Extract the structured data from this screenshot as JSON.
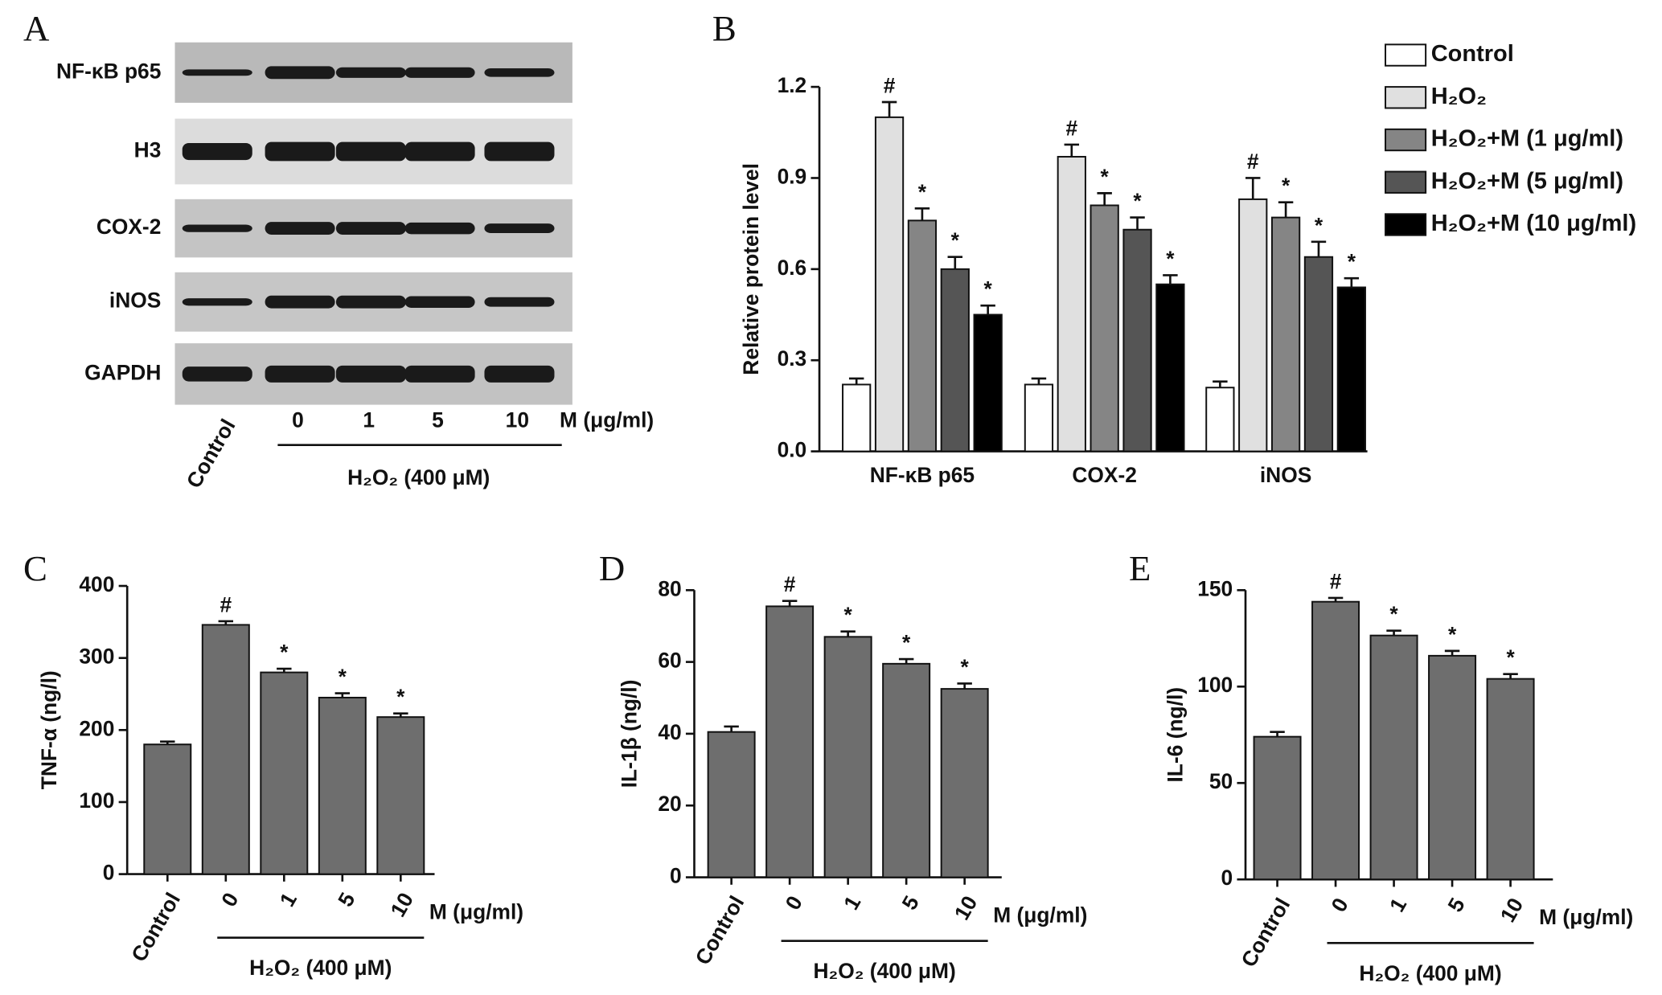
{
  "blot": {
    "panel_label": "A",
    "rows": [
      "NF-κB p65",
      "H3",
      "COX-2",
      "iNOS",
      "GAPDH"
    ],
    "lanes": [
      "Control",
      "0",
      "1",
      "5",
      "10"
    ],
    "unit": "M (μg/ml)",
    "group_label": "H₂O₂ (400 μM)"
  },
  "chart_data": [
    {
      "type": "grouped_bar",
      "panel_label": "B",
      "y_label": "Relative protein level",
      "categories": [
        "NF-κB p65",
        "COX-2",
        "iNOS"
      ],
      "series": [
        {
          "name": "Control",
          "color": "#ffffff",
          "values": [
            0.22,
            0.22,
            0.21
          ],
          "errors": [
            0.02,
            0.02,
            0.02
          ]
        },
        {
          "name": "H₂O₂",
          "color": "#e0e0e0",
          "values": [
            1.1,
            0.97,
            0.83
          ],
          "errors": [
            0.05,
            0.04,
            0.07
          ],
          "labels": [
            "#",
            "#",
            "#"
          ]
        },
        {
          "name": "H₂O₂+M (1 μg/ml)",
          "color": "#858585",
          "values": [
            0.76,
            0.81,
            0.77
          ],
          "errors": [
            0.04,
            0.04,
            0.05
          ],
          "labels": [
            "*",
            "*",
            "*"
          ]
        },
        {
          "name": "H₂O₂+M (5 μg/ml)",
          "color": "#555555",
          "values": [
            0.6,
            0.73,
            0.64
          ],
          "errors": [
            0.04,
            0.04,
            0.05
          ],
          "labels": [
            "*",
            "*",
            "*"
          ]
        },
        {
          "name": "H₂O₂+M (10 μg/ml)",
          "color": "#000000",
          "values": [
            0.45,
            0.55,
            0.54
          ],
          "errors": [
            0.03,
            0.03,
            0.03
          ],
          "labels": [
            "*",
            "*",
            "*"
          ]
        }
      ],
      "ylim": [
        0,
        1.2
      ],
      "yticks": [
        {
          "value": 0,
          "label": "0.0"
        },
        0.3,
        0.6,
        0.9,
        1.2
      ]
    },
    {
      "type": "bar",
      "panel_label": "C",
      "y_label": "TNF-α (ng/l)",
      "color": "#6e6e6e",
      "categories": [
        "Control",
        "0",
        "1",
        "5",
        "10"
      ],
      "x_unit": "M (μg/ml)",
      "group_label": "H₂O₂ (400 μM)",
      "values": [
        180,
        346,
        280,
        245,
        218
      ],
      "errors": [
        4,
        5,
        5,
        6,
        5
      ],
      "labels": [
        null,
        "#",
        "*",
        "*",
        "*"
      ],
      "ylim": [
        0,
        400
      ],
      "yticks": [
        0,
        100,
        200,
        300,
        400
      ]
    },
    {
      "type": "bar",
      "panel_label": "D",
      "y_label": "IL-1β (ng/l)",
      "color": "#6e6e6e",
      "categories": [
        "Control",
        "0",
        "1",
        "5",
        "10"
      ],
      "x_unit": "M (μg/ml)",
      "group_label": "H₂O₂ (400 μM)",
      "values": [
        40.5,
        75.5,
        67,
        59.5,
        52.5
      ],
      "errors": [
        1.5,
        1.5,
        1.5,
        1.3,
        1.5
      ],
      "labels": [
        null,
        "#",
        "*",
        "*",
        "*"
      ],
      "ylim": [
        0,
        80
      ],
      "yticks": [
        0,
        20,
        40,
        60,
        80
      ]
    },
    {
      "type": "bar",
      "panel_label": "E",
      "y_label": "IL-6 (ng/l)",
      "color": "#6e6e6e",
      "categories": [
        "Control",
        "0",
        "1",
        "5",
        "10"
      ],
      "x_unit": "M (μg/ml)",
      "group_label": "H₂O₂ (400 μM)",
      "values": [
        74,
        144,
        126.5,
        116,
        104
      ],
      "errors": [
        2.5,
        2,
        2.5,
        2.5,
        2.5
      ],
      "labels": [
        null,
        "#",
        "*",
        "*",
        "*"
      ],
      "ylim": [
        0,
        150
      ],
      "yticks": [
        0,
        50,
        100,
        150
      ]
    }
  ]
}
